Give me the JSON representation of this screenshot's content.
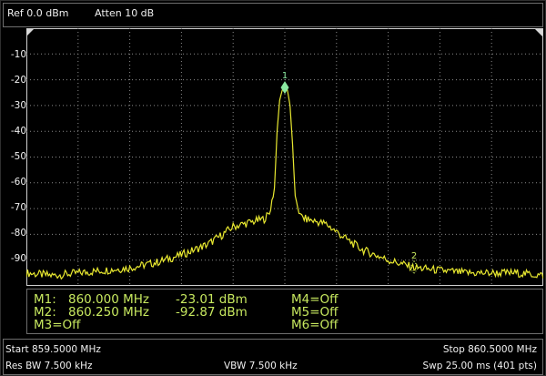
{
  "header": {
    "ref_level": "Ref 0.0 dBm",
    "attenuation": "Atten 10 dB"
  },
  "y_axis": {
    "tick_labels": [
      "-10",
      "-20",
      "-30",
      "-40",
      "-50",
      "-60",
      "-70",
      "-80",
      "-90"
    ]
  },
  "footer": {
    "start_freq": "Start 859.5000 MHz",
    "stop_freq": "Stop 860.5000 MHz",
    "res_bw": "Res BW 7.500 kHz",
    "vbw": "VBW 7.500 kHz",
    "sweep": "Swp 25.00 ms (401 pts)"
  },
  "marker_table": {
    "m1_name": "M1:",
    "m1_freq": "860.000 MHz",
    "m1_level": "-23.01 dBm",
    "m2_name": "M2:",
    "m2_freq": "860.250 MHz",
    "m2_level": "-92.87 dBm",
    "m3": "M3=Off",
    "m4": "M4=Off",
    "m5": "M5=Off",
    "m6": "M6=Off"
  },
  "colors": {
    "trace": "#e8e830",
    "marker": "#8ae8a0",
    "marker_text": "#c7e85f",
    "grid": "#8a8a8a",
    "text": "#f0f0f0"
  },
  "chart_data": {
    "type": "line",
    "x_unit": "MHz",
    "y_unit": "dBm",
    "xlim": [
      859.5,
      860.5
    ],
    "ylim": [
      -100,
      0
    ],
    "grid": true,
    "x_divisions": 10,
    "y_divisions": 10,
    "series": [
      {
        "x": [
          859.5,
          859.55,
          859.6,
          859.65,
          859.7,
          859.75,
          859.8,
          859.85,
          859.88,
          859.9,
          859.92,
          859.94,
          859.96,
          859.97,
          859.98,
          859.985,
          859.99,
          859.995,
          860.0,
          860.005,
          860.01,
          860.015,
          860.02,
          860.03,
          860.04,
          860.06,
          860.08,
          860.1,
          860.12,
          860.15,
          860.2,
          860.25,
          860.3,
          860.35,
          860.4,
          860.45,
          860.5
        ],
        "y": [
          -95,
          -96,
          -95,
          -94,
          -93,
          -91,
          -88,
          -84,
          -80,
          -77,
          -76,
          -75,
          -74,
          -72,
          -62,
          -40,
          -28,
          -24,
          -23.01,
          -24,
          -30,
          -45,
          -65,
          -73,
          -74,
          -75,
          -76,
          -79,
          -82,
          -86,
          -90,
          -92.87,
          -94,
          -95,
          -95,
          -95,
          -96
        ]
      }
    ],
    "markers": [
      {
        "label": "1",
        "x": 860.0,
        "y": -23.01
      },
      {
        "label": "2",
        "x": 860.25,
        "y": -92.87
      }
    ]
  }
}
